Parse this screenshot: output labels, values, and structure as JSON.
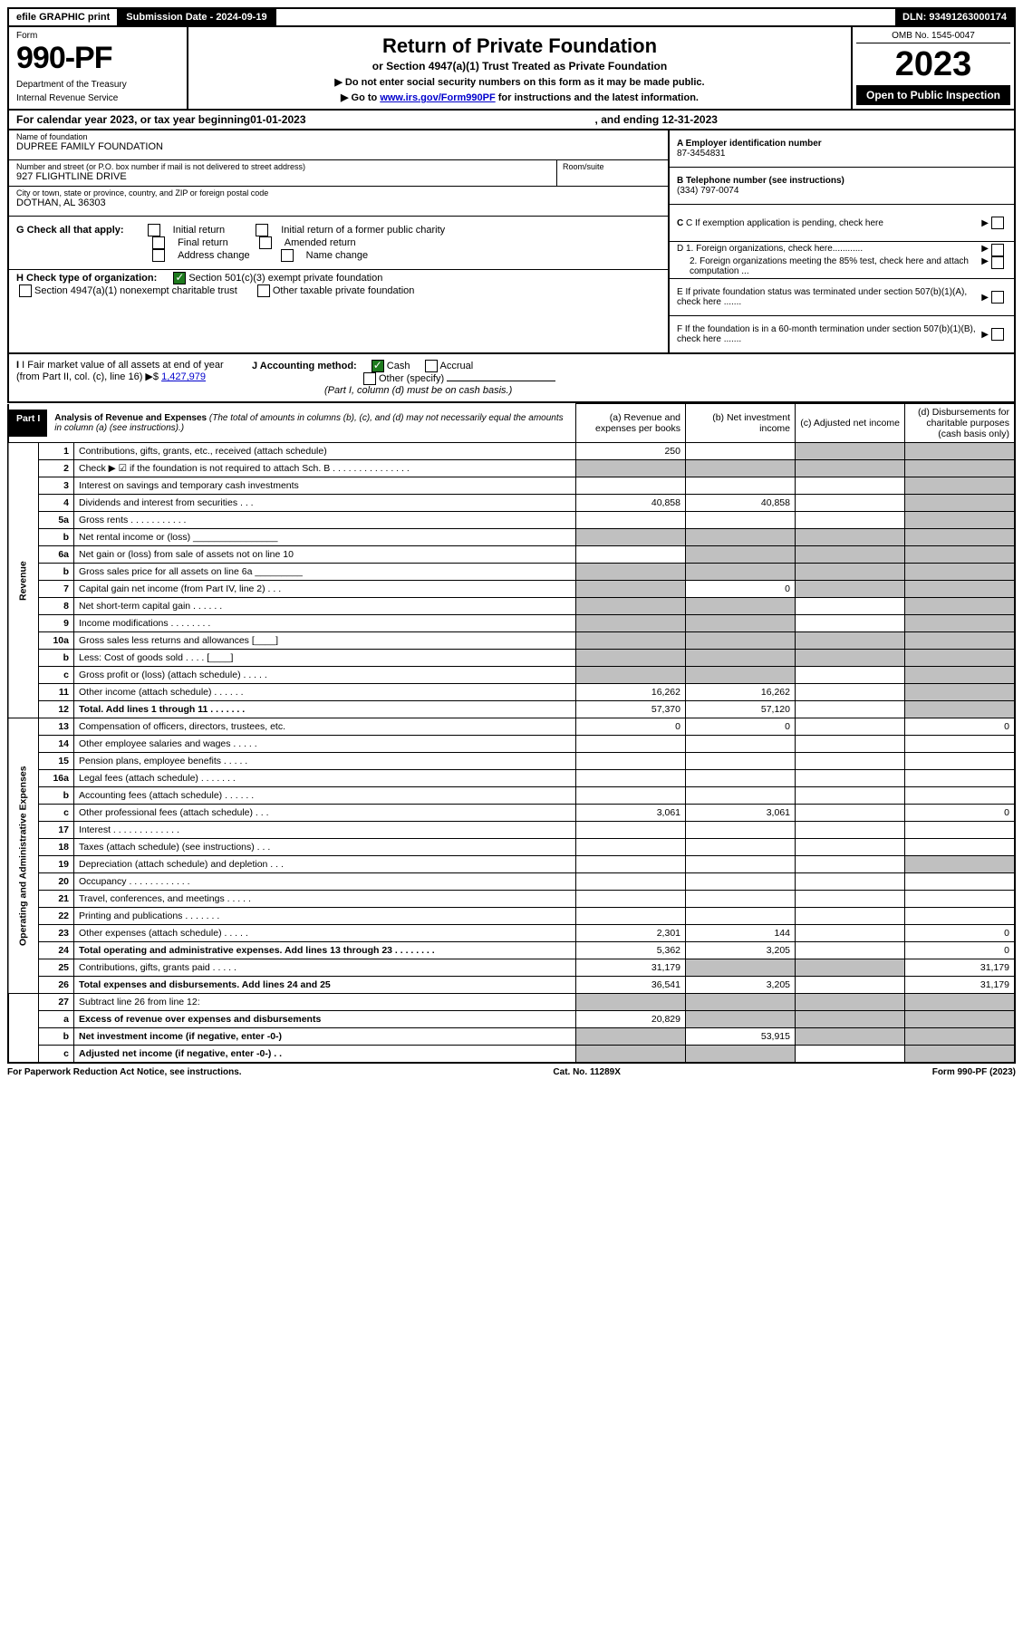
{
  "top": {
    "efile": "efile GRAPHIC print",
    "submission_label": "Submission Date - 2024-09-19",
    "dln": "DLN: 93491263000174"
  },
  "header": {
    "form_label": "Form",
    "form_number": "990-PF",
    "dept1": "Department of the Treasury",
    "dept2": "Internal Revenue Service",
    "title": "Return of Private Foundation",
    "subtitle": "or Section 4947(a)(1) Trust Treated as Private Foundation",
    "instr1": "▶ Do not enter social security numbers on this form as it may be made public.",
    "instr2_pre": "▶ Go to ",
    "instr2_link": "www.irs.gov/Form990PF",
    "instr2_post": " for instructions and the latest information.",
    "omb": "OMB No. 1545-0047",
    "year": "2023",
    "open": "Open to Public Inspection"
  },
  "cal_year": {
    "pre": "For calendar year 2023, or tax year beginning ",
    "begin": "01-01-2023",
    "mid": " , and ending ",
    "end": "12-31-2023"
  },
  "info": {
    "name_lbl": "Name of foundation",
    "name_val": "DUPREE FAMILY FOUNDATION",
    "addr_lbl": "Number and street (or P.O. box number if mail is not delivered to street address)",
    "addr_val": "927 FLIGHTLINE DRIVE",
    "room_lbl": "Room/suite",
    "city_lbl": "City or town, state or province, country, and ZIP or foreign postal code",
    "city_val": "DOTHAN, AL  36303",
    "a_lbl": "A Employer identification number",
    "a_val": "87-3454831",
    "b_lbl": "B Telephone number (see instructions)",
    "b_val": "(334) 797-0074",
    "c_txt": "C If exemption application is pending, check here",
    "d1_txt": "D 1. Foreign organizations, check here............",
    "d2_txt": "2. Foreign organizations meeting the 85% test, check here and attach computation ...",
    "e_txt": "E  If private foundation status was terminated under section 507(b)(1)(A), check here .......",
    "f_txt": "F  If the foundation is in a 60-month termination under section 507(b)(1)(B), check here .......",
    "g_lbl": "G Check all that apply:",
    "g_opts": [
      "Initial return",
      "Initial return of a former public charity",
      "Final return",
      "Amended return",
      "Address change",
      "Name change"
    ],
    "h_lbl": "H Check type of organization:",
    "h_opt1": "Section 501(c)(3) exempt private foundation",
    "h_opt2": "Section 4947(a)(1) nonexempt charitable trust",
    "h_opt3": "Other taxable private foundation",
    "i_lbl": "I Fair market value of all assets at end of year (from Part II, col. (c), line 16)",
    "i_val": "1,427,979",
    "j_lbl": "J Accounting method:",
    "j_opts": [
      "Cash",
      "Accrual",
      "Other (specify)"
    ],
    "j_note": "(Part I, column (d) must be on cash basis.)"
  },
  "part1": {
    "label": "Part I",
    "title": "Analysis of Revenue and Expenses",
    "title_note": "(The total of amounts in columns (b), (c), and (d) may not necessarily equal the amounts in column (a) (see instructions).)",
    "col_a": "(a)  Revenue and expenses per books",
    "col_b": "(b)  Net investment income",
    "col_c": "(c)  Adjusted net income",
    "col_d": "(d)  Disbursements for charitable purposes (cash basis only)"
  },
  "side": {
    "revenue": "Revenue",
    "opex": "Operating and Administrative Expenses"
  },
  "rows": [
    {
      "n": "1",
      "d": "Contributions, gifts, grants, etc., received (attach schedule)",
      "a": "250",
      "b": "",
      "c": "s",
      "dd": "s"
    },
    {
      "n": "2",
      "d": "Check ▶ ☑ if the foundation is not required to attach Sch. B   .  .  .  .  .  .  .  .  .  .  .  .  .  .  .",
      "a": "s",
      "b": "s",
      "c": "s",
      "dd": "s"
    },
    {
      "n": "3",
      "d": "Interest on savings and temporary cash investments",
      "a": "",
      "b": "",
      "c": "",
      "dd": "s"
    },
    {
      "n": "4",
      "d": "Dividends and interest from securities   .   .   .",
      "a": "40,858",
      "b": "40,858",
      "c": "",
      "dd": "s"
    },
    {
      "n": "5a",
      "d": "Gross rents   .   .   .   .   .   .   .   .   .   .   .",
      "a": "",
      "b": "",
      "c": "",
      "dd": "s"
    },
    {
      "n": "b",
      "d": "Net rental income or (loss)  ________________",
      "a": "s",
      "b": "s",
      "c": "s",
      "dd": "s"
    },
    {
      "n": "6a",
      "d": "Net gain or (loss) from sale of assets not on line 10",
      "a": "",
      "b": "s",
      "c": "s",
      "dd": "s"
    },
    {
      "n": "b",
      "d": "Gross sales price for all assets on line 6a _________",
      "a": "s",
      "b": "s",
      "c": "s",
      "dd": "s"
    },
    {
      "n": "7",
      "d": "Capital gain net income (from Part IV, line 2)   .   .   .",
      "a": "s",
      "b": "0",
      "c": "s",
      "dd": "s"
    },
    {
      "n": "8",
      "d": "Net short-term capital gain   .   .   .   .   .   .",
      "a": "s",
      "b": "s",
      "c": "",
      "dd": "s"
    },
    {
      "n": "9",
      "d": "Income modifications   .   .   .   .   .   .   .   .",
      "a": "s",
      "b": "s",
      "c": "",
      "dd": "s"
    },
    {
      "n": "10a",
      "d": "Gross sales less returns and allowances  [____]",
      "a": "s",
      "b": "s",
      "c": "s",
      "dd": "s"
    },
    {
      "n": "b",
      "d": "Less: Cost of goods sold   .   .   .   .   [____]",
      "a": "s",
      "b": "s",
      "c": "s",
      "dd": "s"
    },
    {
      "n": "c",
      "d": "Gross profit or (loss) (attach schedule)   .   .   .   .   .",
      "a": "s",
      "b": "s",
      "c": "",
      "dd": "s"
    },
    {
      "n": "11",
      "d": "Other income (attach schedule)   .   .   .   .   .   .",
      "a": "16,262",
      "b": "16,262",
      "c": "",
      "dd": "s"
    },
    {
      "n": "12",
      "d": "Total. Add lines 1 through 11   .   .   .   .   .   .   .",
      "a": "57,370",
      "b": "57,120",
      "c": "",
      "dd": "s",
      "bold": true
    }
  ],
  "op_rows": [
    {
      "n": "13",
      "d": "Compensation of officers, directors, trustees, etc.",
      "a": "0",
      "b": "0",
      "c": "",
      "dd": "0"
    },
    {
      "n": "14",
      "d": "Other employee salaries and wages   .   .   .   .   .",
      "a": "",
      "b": "",
      "c": "",
      "dd": ""
    },
    {
      "n": "15",
      "d": "Pension plans, employee benefits   .   .   .   .   .",
      "a": "",
      "b": "",
      "c": "",
      "dd": ""
    },
    {
      "n": "16a",
      "d": "Legal fees (attach schedule)   .   .   .   .   .   .   .",
      "a": "",
      "b": "",
      "c": "",
      "dd": ""
    },
    {
      "n": "b",
      "d": "Accounting fees (attach schedule)   .   .   .   .   .   .",
      "a": "",
      "b": "",
      "c": "",
      "dd": ""
    },
    {
      "n": "c",
      "d": "Other professional fees (attach schedule)   .   .   .",
      "a": "3,061",
      "b": "3,061",
      "c": "",
      "dd": "0"
    },
    {
      "n": "17",
      "d": "Interest   .   .   .   .   .   .   .   .   .   .   .   .   .",
      "a": "",
      "b": "",
      "c": "",
      "dd": ""
    },
    {
      "n": "18",
      "d": "Taxes (attach schedule) (see instructions)   .   .   .",
      "a": "",
      "b": "",
      "c": "",
      "dd": ""
    },
    {
      "n": "19",
      "d": "Depreciation (attach schedule) and depletion   .   .   .",
      "a": "",
      "b": "",
      "c": "",
      "dd": "s"
    },
    {
      "n": "20",
      "d": "Occupancy   .   .   .   .   .   .   .   .   .   .   .   .",
      "a": "",
      "b": "",
      "c": "",
      "dd": ""
    },
    {
      "n": "21",
      "d": "Travel, conferences, and meetings   .   .   .   .   .",
      "a": "",
      "b": "",
      "c": "",
      "dd": ""
    },
    {
      "n": "22",
      "d": "Printing and publications   .   .   .   .   .   .   .",
      "a": "",
      "b": "",
      "c": "",
      "dd": ""
    },
    {
      "n": "23",
      "d": "Other expenses (attach schedule)   .   .   .   .   .",
      "a": "2,301",
      "b": "144",
      "c": "",
      "dd": "0"
    },
    {
      "n": "24",
      "d": "Total operating and administrative expenses. Add lines 13 through 23   .   .   .   .   .   .   .   .",
      "a": "5,362",
      "b": "3,205",
      "c": "",
      "dd": "0",
      "bold": true
    },
    {
      "n": "25",
      "d": "Contributions, gifts, grants paid   .   .   .   .   .",
      "a": "31,179",
      "b": "s",
      "c": "s",
      "dd": "31,179"
    },
    {
      "n": "26",
      "d": "Total expenses and disbursements. Add lines 24 and 25",
      "a": "36,541",
      "b": "3,205",
      "c": "",
      "dd": "31,179",
      "bold": true
    }
  ],
  "bot_rows": [
    {
      "n": "27",
      "d": "Subtract line 26 from line 12:",
      "a": "s",
      "b": "s",
      "c": "s",
      "dd": "s"
    },
    {
      "n": "a",
      "d": "Excess of revenue over expenses and disbursements",
      "a": "20,829",
      "b": "s",
      "c": "s",
      "dd": "s",
      "bold": true
    },
    {
      "n": "b",
      "d": "Net investment income (if negative, enter -0-)",
      "a": "s",
      "b": "53,915",
      "c": "s",
      "dd": "s",
      "bold": true
    },
    {
      "n": "c",
      "d": "Adjusted net income (if negative, enter -0-)   .  .",
      "a": "s",
      "b": "s",
      "c": "",
      "dd": "s",
      "bold": true
    }
  ],
  "footer": {
    "left": "For Paperwork Reduction Act Notice, see instructions.",
    "mid": "Cat. No. 11289X",
    "right": "Form 990-PF (2023)"
  }
}
